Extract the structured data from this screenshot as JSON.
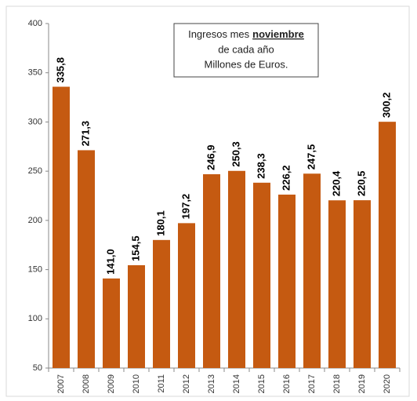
{
  "chart_data": {
    "type": "bar",
    "title": {
      "lead": "Ingresos mes",
      "emphasis": "noviembre",
      "line2": "de cada año",
      "line3": "Millones de Euros."
    },
    "categories": [
      "2007",
      "2008",
      "2009",
      "2010",
      "2011",
      "2012",
      "2013",
      "2014",
      "2015",
      "2016",
      "2017",
      "2018",
      "2019",
      "2020"
    ],
    "values": [
      335.8,
      271.3,
      141.0,
      154.5,
      180.1,
      197.2,
      246.9,
      250.3,
      238.3,
      226.2,
      247.5,
      220.4,
      220.5,
      300.2
    ],
    "value_labels": [
      "335,8",
      "271,3",
      "141,0",
      "154,5",
      "180,1",
      "197,2",
      "246,9",
      "250,3",
      "238,3",
      "226,2",
      "247,5",
      "220,4",
      "220,5",
      "300,2"
    ],
    "color": "#c55a11",
    "ylim": [
      50,
      400
    ],
    "yticks": [
      50,
      100,
      150,
      200,
      250,
      300,
      350,
      400
    ],
    "grid": false
  }
}
